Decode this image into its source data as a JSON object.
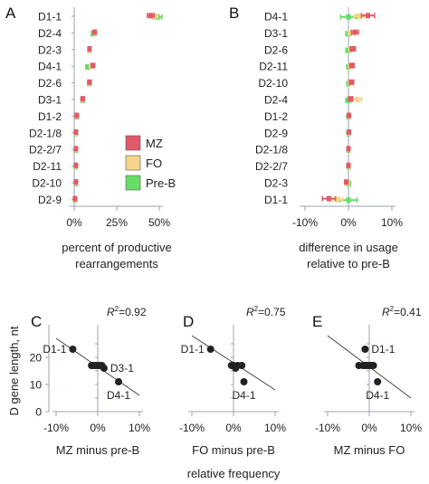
{
  "colors": {
    "MZ": "#e05a6a",
    "FO": "#f6d58a",
    "PreB": "#66dd66",
    "axis": "#9aa6b2",
    "line": "#444444",
    "dot": "#222222"
  },
  "chart_data": [
    {
      "id": "A",
      "type": "bar",
      "panel_label": "A",
      "categories": [
        "D1-1",
        "D2-4",
        "D2-3",
        "D4-1",
        "D2-6",
        "D3-1",
        "D1-2",
        "D2-1/8",
        "D2-2/7",
        "D2-11",
        "D2-10",
        "D2-9"
      ],
      "series": [
        {
          "name": "MZ",
          "values": [
            45,
            12,
            9,
            11,
            9,
            5,
            1.5,
            1,
            1,
            1,
            1,
            0.5
          ],
          "errors": [
            2,
            1,
            0.8,
            1,
            1,
            1,
            0.3,
            0.3,
            0.3,
            0.3,
            0.3,
            0.2
          ]
        },
        {
          "name": "FO",
          "values": [
            47,
            12,
            9,
            10,
            9,
            5,
            1.5,
            1,
            1,
            1,
            1,
            0.5
          ],
          "errors": [
            2,
            1,
            0.8,
            1,
            1,
            1,
            0.3,
            0.3,
            0.3,
            0.3,
            0.3,
            0.2
          ]
        },
        {
          "name": "Pre-B",
          "values": [
            49,
            11,
            9,
            8,
            9,
            5,
            1.5,
            1,
            1,
            1,
            1,
            0.5
          ],
          "errors": [
            2.5,
            1,
            0.8,
            1.2,
            1,
            1,
            0.3,
            0.3,
            0.3,
            0.3,
            0.3,
            0.2
          ]
        }
      ],
      "xlim": [
        0,
        50
      ],
      "x_ticks": [
        "0%",
        "25%",
        "50%"
      ],
      "x_tick_values": [
        0,
        25,
        50
      ],
      "xlabel_line1": "percent of productive",
      "xlabel_line2": "rearrangements",
      "legend": [
        "MZ",
        "FO",
        "Pre-B"
      ]
    },
    {
      "id": "B",
      "type": "bar",
      "panel_label": "B",
      "categories": [
        "D4-1",
        "D3-1",
        "D2-6",
        "D2-11",
        "D2-10",
        "D2-4",
        "D1-2",
        "D2-9",
        "D2-1/8",
        "D2-2/7",
        "D2-3",
        "D1-1"
      ],
      "series": [
        {
          "name": "MZ",
          "values": [
            4.5,
            1.5,
            1,
            0.8,
            0.7,
            0.5,
            0.1,
            0.1,
            0,
            0,
            -0.5,
            -4.5
          ],
          "errors": [
            1.5,
            0.8,
            0.6,
            0.5,
            0.5,
            0.5,
            0.2,
            0.2,
            0.2,
            0.2,
            0.4,
            1.5
          ]
        },
        {
          "name": "FO",
          "values": [
            2.5,
            0.5,
            0.6,
            0.5,
            0.5,
            2,
            0.1,
            0.1,
            0,
            0,
            -0.2,
            -2.5
          ],
          "errors": [
            1.2,
            0.6,
            0.5,
            0.5,
            0.5,
            1,
            0.2,
            0.2,
            0.2,
            0.2,
            0.4,
            1.2
          ]
        },
        {
          "name": "Pre-B",
          "values": [
            0,
            0,
            0,
            0,
            0,
            0,
            0,
            0,
            0,
            0,
            0,
            0
          ],
          "errors": [
            1.8,
            0.6,
            0.6,
            0.3,
            0.3,
            0.6,
            0.2,
            0.2,
            0.2,
            0.2,
            0.5,
            2
          ]
        }
      ],
      "xlim": [
        -10,
        10
      ],
      "x_ticks": [
        "-10%",
        "0%",
        "10%"
      ],
      "x_tick_values": [
        -10,
        0,
        10
      ],
      "xlabel_line1": "difference in usage",
      "xlabel_line2": "relative to pre-B"
    },
    {
      "id": "C",
      "type": "scatter",
      "panel_label": "C",
      "r2_text": "=0.92",
      "x": [
        -6,
        -1.5,
        -1,
        -0.5,
        0,
        0.5,
        1,
        1.5,
        5
      ],
      "y": [
        23,
        17,
        17,
        17,
        17,
        17,
        17,
        16,
        11
      ],
      "point_labels": [
        {
          "text": "D1-1",
          "x": -6,
          "y": 23,
          "side": "left"
        },
        {
          "text": "D3-1",
          "x": 1.5,
          "y": 16,
          "side": "right"
        },
        {
          "text": "D4-1",
          "x": 5,
          "y": 11,
          "side": "below"
        }
      ],
      "fit": [
        [
          -10,
          27
        ],
        [
          10,
          6
        ]
      ],
      "xlim": [
        -10,
        10
      ],
      "ylim": [
        0,
        30
      ],
      "x_ticks": [
        "-10%",
        "0%",
        "10%"
      ],
      "x_tick_values": [
        -10,
        0,
        10
      ],
      "y_ticks": [
        "0",
        "10",
        "20"
      ],
      "y_tick_values": [
        0,
        10,
        20
      ],
      "xlabel": "MZ minus pre-B",
      "ylabel": "D gene length, nt"
    },
    {
      "id": "D",
      "type": "scatter",
      "panel_label": "D",
      "r2_text": "=0.75",
      "x": [
        -5.5,
        -0.5,
        0,
        0.5,
        1,
        2,
        2.5
      ],
      "y": [
        23,
        17,
        17,
        16,
        17,
        17,
        11
      ],
      "point_labels": [
        {
          "text": "D1-1",
          "x": -5.5,
          "y": 23,
          "side": "left"
        },
        {
          "text": "D4-1",
          "x": 2.5,
          "y": 11,
          "side": "below"
        }
      ],
      "fit": [
        [
          -10,
          28
        ],
        [
          10,
          8
        ]
      ],
      "xlim": [
        -10,
        10
      ],
      "ylim": [
        0,
        30
      ],
      "x_ticks": [
        "-10%",
        "0%",
        "10%"
      ],
      "x_tick_values": [
        -10,
        0,
        10
      ],
      "xlabel": "FO minus pre-B"
    },
    {
      "id": "E",
      "type": "scatter",
      "panel_label": "E",
      "r2_text": "=0.41",
      "x": [
        -2.5,
        -1.5,
        -1,
        -0.5,
        0,
        0.5,
        1,
        -1,
        2
      ],
      "y": [
        17,
        17,
        17,
        17,
        17,
        17,
        17,
        23,
        11
      ],
      "point_labels": [
        {
          "text": "D1-1",
          "x": -1,
          "y": 23,
          "side": "right"
        },
        {
          "text": "D4-1",
          "x": 2,
          "y": 11,
          "side": "below"
        }
      ],
      "fit": [
        [
          -10,
          28
        ],
        [
          10,
          5
        ]
      ],
      "xlim": [
        -10,
        10
      ],
      "ylim": [
        0,
        30
      ],
      "x_ticks": [
        "-10%",
        "0%",
        "10%"
      ],
      "x_tick_values": [
        -10,
        0,
        10
      ],
      "xlabel": "MZ minus FO"
    }
  ],
  "shared_xlabel": "relative frequency",
  "r2_prefix": "R"
}
